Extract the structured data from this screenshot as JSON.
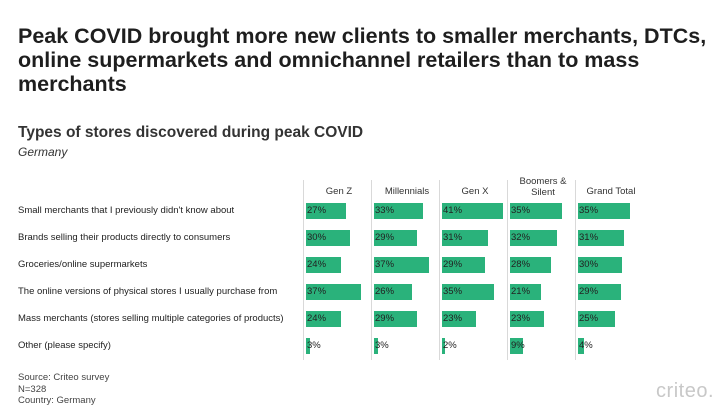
{
  "headline": "Peak COVID brought more new clients to smaller merchants, DTCs, online supermarkets and omnichannel retailers than to mass merchants",
  "chart_title": "Types of stores discovered during peak COVID",
  "chart_subtitle": "Germany",
  "footer": {
    "source": "Source: Criteo survey",
    "n": "N=328",
    "country": "Country: Germany"
  },
  "brand": "criteo.",
  "bar_color": "#2ab27b",
  "chart_data": {
    "type": "bar",
    "title": "Types of stores discovered during peak COVID",
    "subtitle": "Germany",
    "categories": [
      "Small merchants that I previously didn't know about",
      "Brands selling their products directly to consumers",
      "Groceries/online supermarkets",
      "The online versions of physical stores I usually purchase from",
      "Mass merchants (stores selling multiple categories of products)",
      "Other (please specify)"
    ],
    "series": [
      {
        "name": "Gen Z",
        "values": [
          27,
          30,
          24,
          37,
          24,
          3
        ],
        "labels": [
          "27%",
          "30%",
          "24%",
          "37%",
          "24%",
          "3%"
        ]
      },
      {
        "name": "Millennials",
        "values": [
          33,
          29,
          37,
          26,
          29,
          3
        ],
        "labels": [
          "33%",
          "29%",
          "37%",
          "26%",
          "29%",
          "3%"
        ]
      },
      {
        "name": "Gen X",
        "values": [
          41,
          31,
          29,
          35,
          23,
          2
        ],
        "labels": [
          "41%",
          "31%",
          "29%",
          "35%",
          "23%",
          "2%"
        ]
      },
      {
        "name": "Boomers & Silent",
        "values": [
          35,
          32,
          28,
          21,
          23,
          9
        ],
        "labels": [
          "35%",
          "32%",
          "28%",
          "21%",
          "23%",
          "9%"
        ]
      },
      {
        "name": "Grand Total",
        "values": [
          35,
          31,
          30,
          29,
          25,
          4
        ],
        "labels": [
          "35%",
          "31%",
          "30%",
          "29%",
          "25%",
          "4%"
        ]
      }
    ],
    "xlim": [
      0,
      42
    ]
  }
}
